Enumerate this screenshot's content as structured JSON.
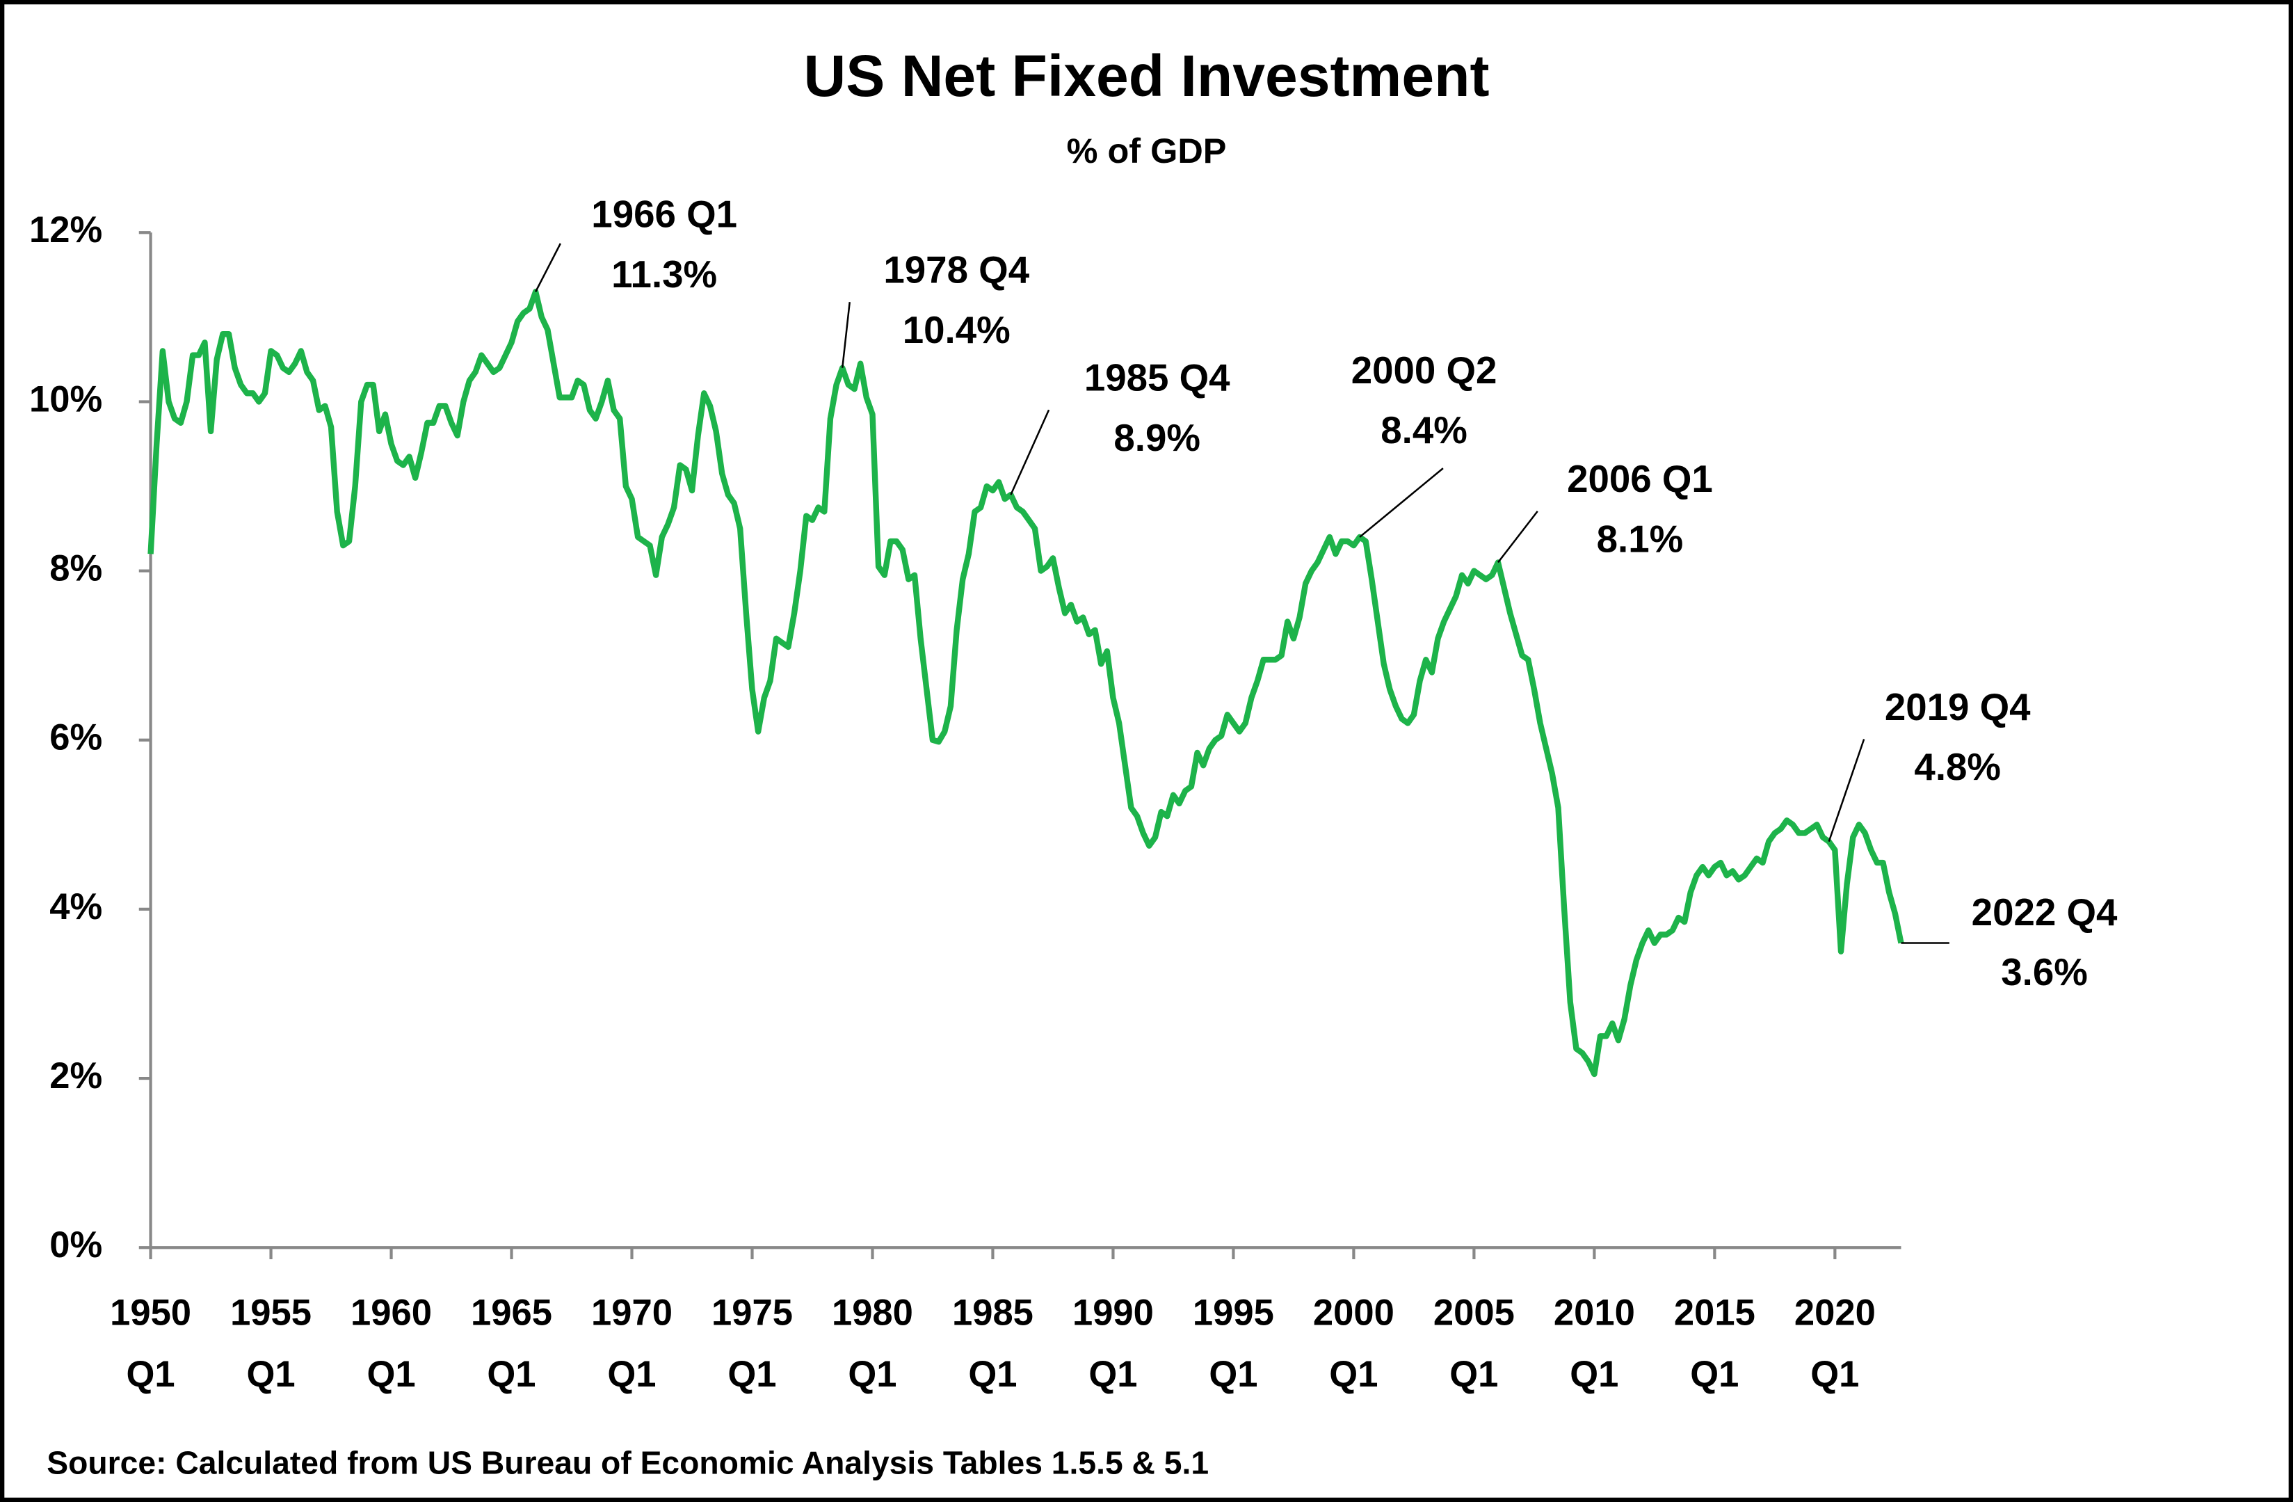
{
  "chart_data": {
    "type": "line",
    "title": "US Net Fixed Investment",
    "subtitle": "% of GDP",
    "source": "Source: Calculated from US Bureau of Economic  Analysis Tables 1.5.5 & 5.1",
    "xlim": [
      1950,
      2022.75
    ],
    "xticks": [
      {
        "value": 1950,
        "label": "1950 Q1"
      },
      {
        "value": 1955,
        "label": "1955 Q1"
      },
      {
        "value": 1960,
        "label": "1960 Q1"
      },
      {
        "value": 1965,
        "label": "1965 Q1"
      },
      {
        "value": 1970,
        "label": "1970 Q1"
      },
      {
        "value": 1975,
        "label": "1975 Q1"
      },
      {
        "value": 1980,
        "label": "1980 Q1"
      },
      {
        "value": 1985,
        "label": "1985 Q1"
      },
      {
        "value": 1990,
        "label": "1990 Q1"
      },
      {
        "value": 1995,
        "label": "1995 Q1"
      },
      {
        "value": 2000,
        "label": "2000 Q1"
      },
      {
        "value": 2005,
        "label": "2005 Q1"
      },
      {
        "value": 2010,
        "label": "2010 Q1"
      },
      {
        "value": 2015,
        "label": "2015 Q1"
      },
      {
        "value": 2020,
        "label": "2020 Q1"
      }
    ],
    "ylim": [
      0,
      12
    ],
    "yticks": [
      {
        "value": 0,
        "label": "0%"
      },
      {
        "value": 2,
        "label": "2%"
      },
      {
        "value": 4,
        "label": "4%"
      },
      {
        "value": 6,
        "label": "6%"
      },
      {
        "value": 8,
        "label": "8%"
      },
      {
        "value": 10,
        "label": "10%"
      },
      {
        "value": 12,
        "label": "12%"
      }
    ],
    "grid": false,
    "x": [
      1950,
      1950.25,
      1950.5,
      1950.75,
      1951,
      1951.25,
      1951.5,
      1951.75,
      1952,
      1952.25,
      1952.5,
      1952.75,
      1953,
      1953.25,
      1953.5,
      1953.75,
      1954,
      1954.25,
      1954.5,
      1954.75,
      1955,
      1955.25,
      1955.5,
      1955.75,
      1956,
      1956.25,
      1956.5,
      1956.75,
      1957,
      1957.25,
      1957.5,
      1957.75,
      1958,
      1958.25,
      1958.5,
      1958.75,
      1959,
      1959.25,
      1959.5,
      1959.75,
      1960,
      1960.25,
      1960.5,
      1960.75,
      1961,
      1961.25,
      1961.5,
      1961.75,
      1962,
      1962.25,
      1962.5,
      1962.75,
      1963,
      1963.25,
      1963.5,
      1963.75,
      1964,
      1964.25,
      1964.5,
      1964.75,
      1965,
      1965.25,
      1965.5,
      1965.75,
      1966,
      1966.25,
      1966.5,
      1966.75,
      1967,
      1967.25,
      1967.5,
      1967.75,
      1968,
      1968.25,
      1968.5,
      1968.75,
      1969,
      1969.25,
      1969.5,
      1969.75,
      1970,
      1970.25,
      1970.5,
      1970.75,
      1971,
      1971.25,
      1971.5,
      1971.75,
      1972,
      1972.25,
      1972.5,
      1972.75,
      1973,
      1973.25,
      1973.5,
      1973.75,
      1974,
      1974.25,
      1974.5,
      1974.75,
      1975,
      1975.25,
      1975.5,
      1975.75,
      1976,
      1976.25,
      1976.5,
      1976.75,
      1977,
      1977.25,
      1977.5,
      1977.75,
      1978,
      1978.25,
      1978.5,
      1978.75,
      1979,
      1979.25,
      1979.5,
      1979.75,
      1980,
      1980.25,
      1980.5,
      1980.75,
      1981,
      1981.25,
      1981.5,
      1981.75,
      1982,
      1982.25,
      1982.5,
      1982.75,
      1983,
      1983.25,
      1983.5,
      1983.75,
      1984,
      1984.25,
      1984.5,
      1984.75,
      1985,
      1985.25,
      1985.5,
      1985.75,
      1986,
      1986.25,
      1986.5,
      1986.75,
      1987,
      1987.25,
      1987.5,
      1987.75,
      1988,
      1988.25,
      1988.5,
      1988.75,
      1989,
      1989.25,
      1989.5,
      1989.75,
      1990,
      1990.25,
      1990.5,
      1990.75,
      1991,
      1991.25,
      1991.5,
      1991.75,
      1992,
      1992.25,
      1992.5,
      1992.75,
      1993,
      1993.25,
      1993.5,
      1993.75,
      1994,
      1994.25,
      1994.5,
      1994.75,
      1995,
      1995.25,
      1995.5,
      1995.75,
      1996,
      1996.25,
      1996.5,
      1996.75,
      1997,
      1997.25,
      1997.5,
      1997.75,
      1998,
      1998.25,
      1998.5,
      1998.75,
      1999,
      1999.25,
      1999.5,
      1999.75,
      2000,
      2000.25,
      2000.5,
      2000.75,
      2001,
      2001.25,
      2001.5,
      2001.75,
      2002,
      2002.25,
      2002.5,
      2002.75,
      2003,
      2003.25,
      2003.5,
      2003.75,
      2004,
      2004.25,
      2004.5,
      2004.75,
      2005,
      2005.25,
      2005.5,
      2005.75,
      2006,
      2006.25,
      2006.5,
      2006.75,
      2007,
      2007.25,
      2007.5,
      2007.75,
      2008,
      2008.25,
      2008.5,
      2008.75,
      2009,
      2009.25,
      2009.5,
      2009.75,
      2010,
      2010.25,
      2010.5,
      2010.75,
      2011,
      2011.25,
      2011.5,
      2011.75,
      2012,
      2012.25,
      2012.5,
      2012.75,
      2013,
      2013.25,
      2013.5,
      2013.75,
      2014,
      2014.25,
      2014.5,
      2014.75,
      2015,
      2015.25,
      2015.5,
      2015.75,
      2016,
      2016.25,
      2016.5,
      2016.75,
      2017,
      2017.25,
      2017.5,
      2017.75,
      2018,
      2018.25,
      2018.5,
      2018.75,
      2019,
      2019.25,
      2019.5,
      2019.75,
      2020,
      2020.25,
      2020.5,
      2020.75,
      2021,
      2021.25,
      2021.5,
      2021.75,
      2022,
      2022.25,
      2022.5,
      2022.75
    ],
    "series": [
      {
        "color": "#1db34a",
        "values": [
          8.2,
          9.5,
          10.6,
          10.0,
          9.8,
          9.75,
          10.0,
          10.55,
          10.55,
          10.7,
          9.65,
          10.5,
          10.8,
          10.8,
          10.4,
          10.2,
          10.1,
          10.1,
          10.0,
          10.1,
          10.6,
          10.55,
          10.4,
          10.35,
          10.45,
          10.6,
          10.35,
          10.25,
          9.9,
          9.95,
          9.7,
          8.7,
          8.3,
          8.35,
          9.0,
          10.0,
          10.2,
          10.2,
          9.65,
          9.85,
          9.5,
          9.3,
          9.25,
          9.35,
          9.1,
          9.4,
          9.75,
          9.75,
          9.95,
          9.95,
          9.75,
          9.6,
          10.0,
          10.25,
          10.35,
          10.55,
          10.45,
          10.35,
          10.4,
          10.55,
          10.7,
          10.95,
          11.05,
          11.1,
          11.3,
          11.0,
          10.85,
          10.45,
          10.05,
          10.05,
          10.05,
          10.25,
          10.2,
          9.9,
          9.8,
          10.0,
          10.25,
          9.9,
          9.8,
          9.0,
          8.85,
          8.4,
          8.35,
          8.3,
          7.95,
          8.4,
          8.55,
          8.75,
          9.25,
          9.2,
          8.95,
          9.6,
          10.1,
          9.95,
          9.65,
          9.15,
          8.9,
          8.8,
          8.5,
          7.5,
          6.6,
          6.1,
          6.5,
          6.7,
          7.2,
          7.15,
          7.1,
          7.5,
          8.0,
          8.65,
          8.6,
          8.75,
          8.7,
          9.8,
          10.2,
          10.4,
          10.2,
          10.15,
          10.45,
          10.05,
          9.85,
          8.05,
          7.95,
          8.35,
          8.35,
          8.25,
          7.9,
          7.95,
          7.2,
          6.6,
          6.0,
          5.98,
          6.1,
          6.4,
          7.3,
          7.9,
          8.2,
          8.7,
          8.75,
          9.0,
          8.95,
          9.05,
          8.85,
          8.9,
          8.75,
          8.7,
          8.6,
          8.5,
          8.0,
          8.05,
          8.15,
          7.8,
          7.5,
          7.6,
          7.4,
          7.45,
          7.25,
          7.3,
          6.9,
          7.05,
          6.5,
          6.2,
          5.7,
          5.2,
          5.1,
          4.9,
          4.75,
          4.85,
          5.15,
          5.1,
          5.35,
          5.25,
          5.4,
          5.45,
          5.85,
          5.7,
          5.9,
          6.0,
          6.05,
          6.3,
          6.2,
          6.1,
          6.2,
          6.5,
          6.7,
          6.95,
          6.95,
          6.95,
          7.0,
          7.4,
          7.2,
          7.45,
          7.85,
          8.0,
          8.1,
          8.25,
          8.4,
          8.2,
          8.35,
          8.35,
          8.3,
          8.4,
          8.35,
          7.9,
          7.4,
          6.9,
          6.6,
          6.4,
          6.25,
          6.2,
          6.3,
          6.7,
          6.95,
          6.8,
          7.2,
          7.4,
          7.55,
          7.7,
          7.95,
          7.85,
          8.0,
          7.95,
          7.9,
          7.95,
          8.1,
          7.8,
          7.5,
          7.25,
          7.0,
          6.95,
          6.6,
          6.2,
          5.9,
          5.6,
          5.2,
          4.0,
          2.9,
          2.35,
          2.3,
          2.2,
          2.05,
          2.5,
          2.5,
          2.65,
          2.45,
          2.7,
          3.1,
          3.4,
          3.6,
          3.75,
          3.6,
          3.7,
          3.7,
          3.75,
          3.9,
          3.85,
          4.2,
          4.4,
          4.5,
          4.4,
          4.5,
          4.55,
          4.4,
          4.45,
          4.35,
          4.4,
          4.5,
          4.6,
          4.55,
          4.8,
          4.9,
          4.95,
          5.05,
          5.0,
          4.9,
          4.9,
          4.95,
          5.0,
          4.85,
          4.8,
          4.7,
          3.5,
          4.3,
          4.85,
          5.0,
          4.9,
          4.7,
          4.55,
          4.55,
          4.2,
          3.95,
          3.6
        ]
      }
    ],
    "annotations": [
      {
        "label": "1966 Q1",
        "value_label": "11.3%",
        "x": 1966,
        "y": 11.3
      },
      {
        "label": "1978 Q4",
        "value_label": "10.4%",
        "x": 1978.75,
        "y": 10.4
      },
      {
        "label": "1985 Q4",
        "value_label": "8.9%",
        "x": 1985.75,
        "y": 8.9
      },
      {
        "label": "2000 Q2",
        "value_label": "8.4%",
        "x": 2000.25,
        "y": 8.4
      },
      {
        "label": "2006 Q1",
        "value_label": "8.1%",
        "x": 2006,
        "y": 8.1
      },
      {
        "label": "2019 Q4",
        "value_label": "4.8%",
        "x": 2019.75,
        "y": 4.8
      },
      {
        "label": "2022 Q4",
        "value_label": "3.6%",
        "x": 2022.75,
        "y": 3.6
      }
    ]
  }
}
